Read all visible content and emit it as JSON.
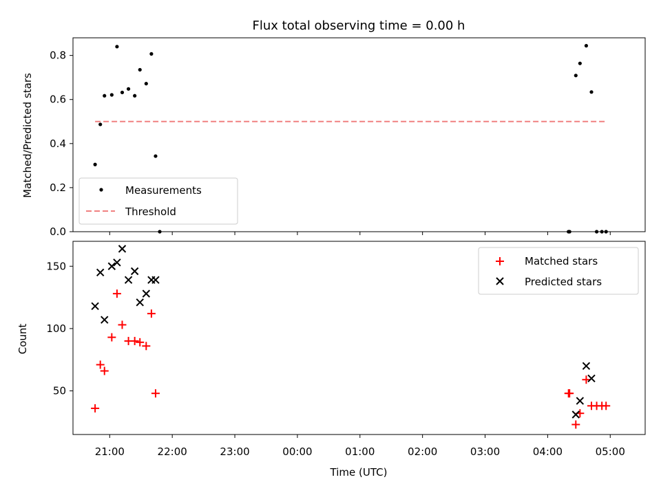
{
  "chart_data": [
    {
      "type": "scatter",
      "title": "Flux total observing time = 0.00 h",
      "ylabel": "Matched/Predicted stars",
      "ylim": [
        0,
        0.88
      ],
      "yticks": [
        "0.0",
        "0.2",
        "0.4",
        "0.6",
        "0.8"
      ],
      "legend_position": "lower-left",
      "series": [
        {
          "name": "Measurements",
          "marker": "dot",
          "color": "#000000",
          "x": [
            "20:46",
            "20:51",
            "20:55",
            "21:02",
            "21:07",
            "21:12",
            "21:18",
            "21:24",
            "21:29",
            "21:35",
            "21:40",
            "21:44",
            "21:48",
            "04:20",
            "04:21",
            "04:27",
            "04:31",
            "04:37",
            "04:42",
            "04:47",
            "04:52",
            "04:56"
          ],
          "y": [
            0.305,
            0.487,
            0.617,
            0.621,
            0.84,
            0.632,
            0.648,
            0.617,
            0.735,
            0.672,
            0.807,
            0.343,
            0.0,
            0.0,
            0.0,
            0.709,
            0.764,
            0.844,
            0.634,
            0.0,
            0.0,
            0.0
          ]
        },
        {
          "name": "Threshold",
          "line_style": "dashed",
          "color": "#f08080",
          "x": [
            "20:46",
            "04:56"
          ],
          "y": [
            0.5,
            0.5
          ]
        }
      ]
    },
    {
      "type": "scatter",
      "xlabel": "Time (UTC)",
      "ylabel": "Count",
      "ylim": [
        15,
        170
      ],
      "yticks": [
        "50",
        "100",
        "150"
      ],
      "xticks": [
        "21:00",
        "22:00",
        "23:00",
        "00:00",
        "01:00",
        "02:00",
        "03:00",
        "04:00",
        "05:00"
      ],
      "legend_position": "upper-right",
      "series": [
        {
          "name": "Matched stars",
          "marker": "plus",
          "color": "#ff0000",
          "x": [
            "20:46",
            "20:51",
            "20:55",
            "21:02",
            "21:07",
            "21:12",
            "21:18",
            "21:24",
            "21:29",
            "21:35",
            "21:40",
            "21:44",
            "04:20",
            "04:21",
            "04:27",
            "04:31",
            "04:37",
            "04:42",
            "04:47",
            "04:52",
            "04:56"
          ],
          "y": [
            36,
            71,
            66,
            93,
            128,
            103,
            90,
            90,
            89,
            86,
            112,
            48,
            48,
            48,
            23,
            32,
            59,
            38,
            38,
            38,
            38
          ]
        },
        {
          "name": "Predicted stars",
          "marker": "x",
          "color": "#000000",
          "x": [
            "20:46",
            "20:51",
            "20:55",
            "21:02",
            "21:07",
            "21:12",
            "21:18",
            "21:24",
            "21:29",
            "21:35",
            "21:40",
            "21:44",
            "04:27",
            "04:31",
            "04:37",
            "04:42"
          ],
          "y": [
            118,
            145,
            107,
            150,
            153,
            164,
            139,
            146,
            121,
            128,
            139,
            139,
            31,
            42,
            70,
            60
          ]
        }
      ]
    }
  ]
}
